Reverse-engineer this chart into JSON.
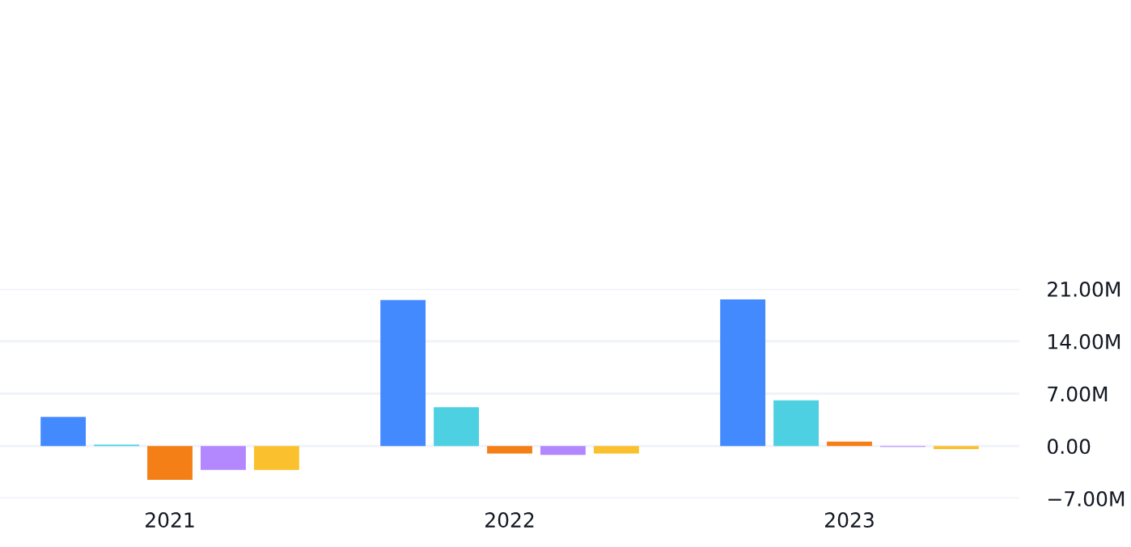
{
  "chart_data": {
    "type": "bar",
    "categories": [
      "2021",
      "2022",
      "2023"
    ],
    "series": [
      {
        "color": "#448aff",
        "values": [
          3.9,
          19.5,
          19.6
        ]
      },
      {
        "color": "#4dd0e1",
        "values": [
          0.2,
          5.2,
          6.1
        ]
      },
      {
        "color": "#f57f17",
        "values": [
          -4.5,
          -1.0,
          0.6
        ]
      },
      {
        "color": "#b388ff",
        "values": [
          -3.2,
          -1.2,
          -0.1
        ]
      },
      {
        "color": "#fbc02d",
        "values": [
          -3.2,
          -1.0,
          -0.4
        ]
      }
    ],
    "ylim": [
      -7,
      21
    ],
    "yticks": [
      {
        "value": -7,
        "label": "−7.00M"
      },
      {
        "value": 0,
        "label": "0.00"
      },
      {
        "value": 7,
        "label": "7.00M"
      },
      {
        "value": 14,
        "label": "14.00M"
      },
      {
        "value": 21,
        "label": "21.00M"
      }
    ],
    "grid": "y"
  }
}
